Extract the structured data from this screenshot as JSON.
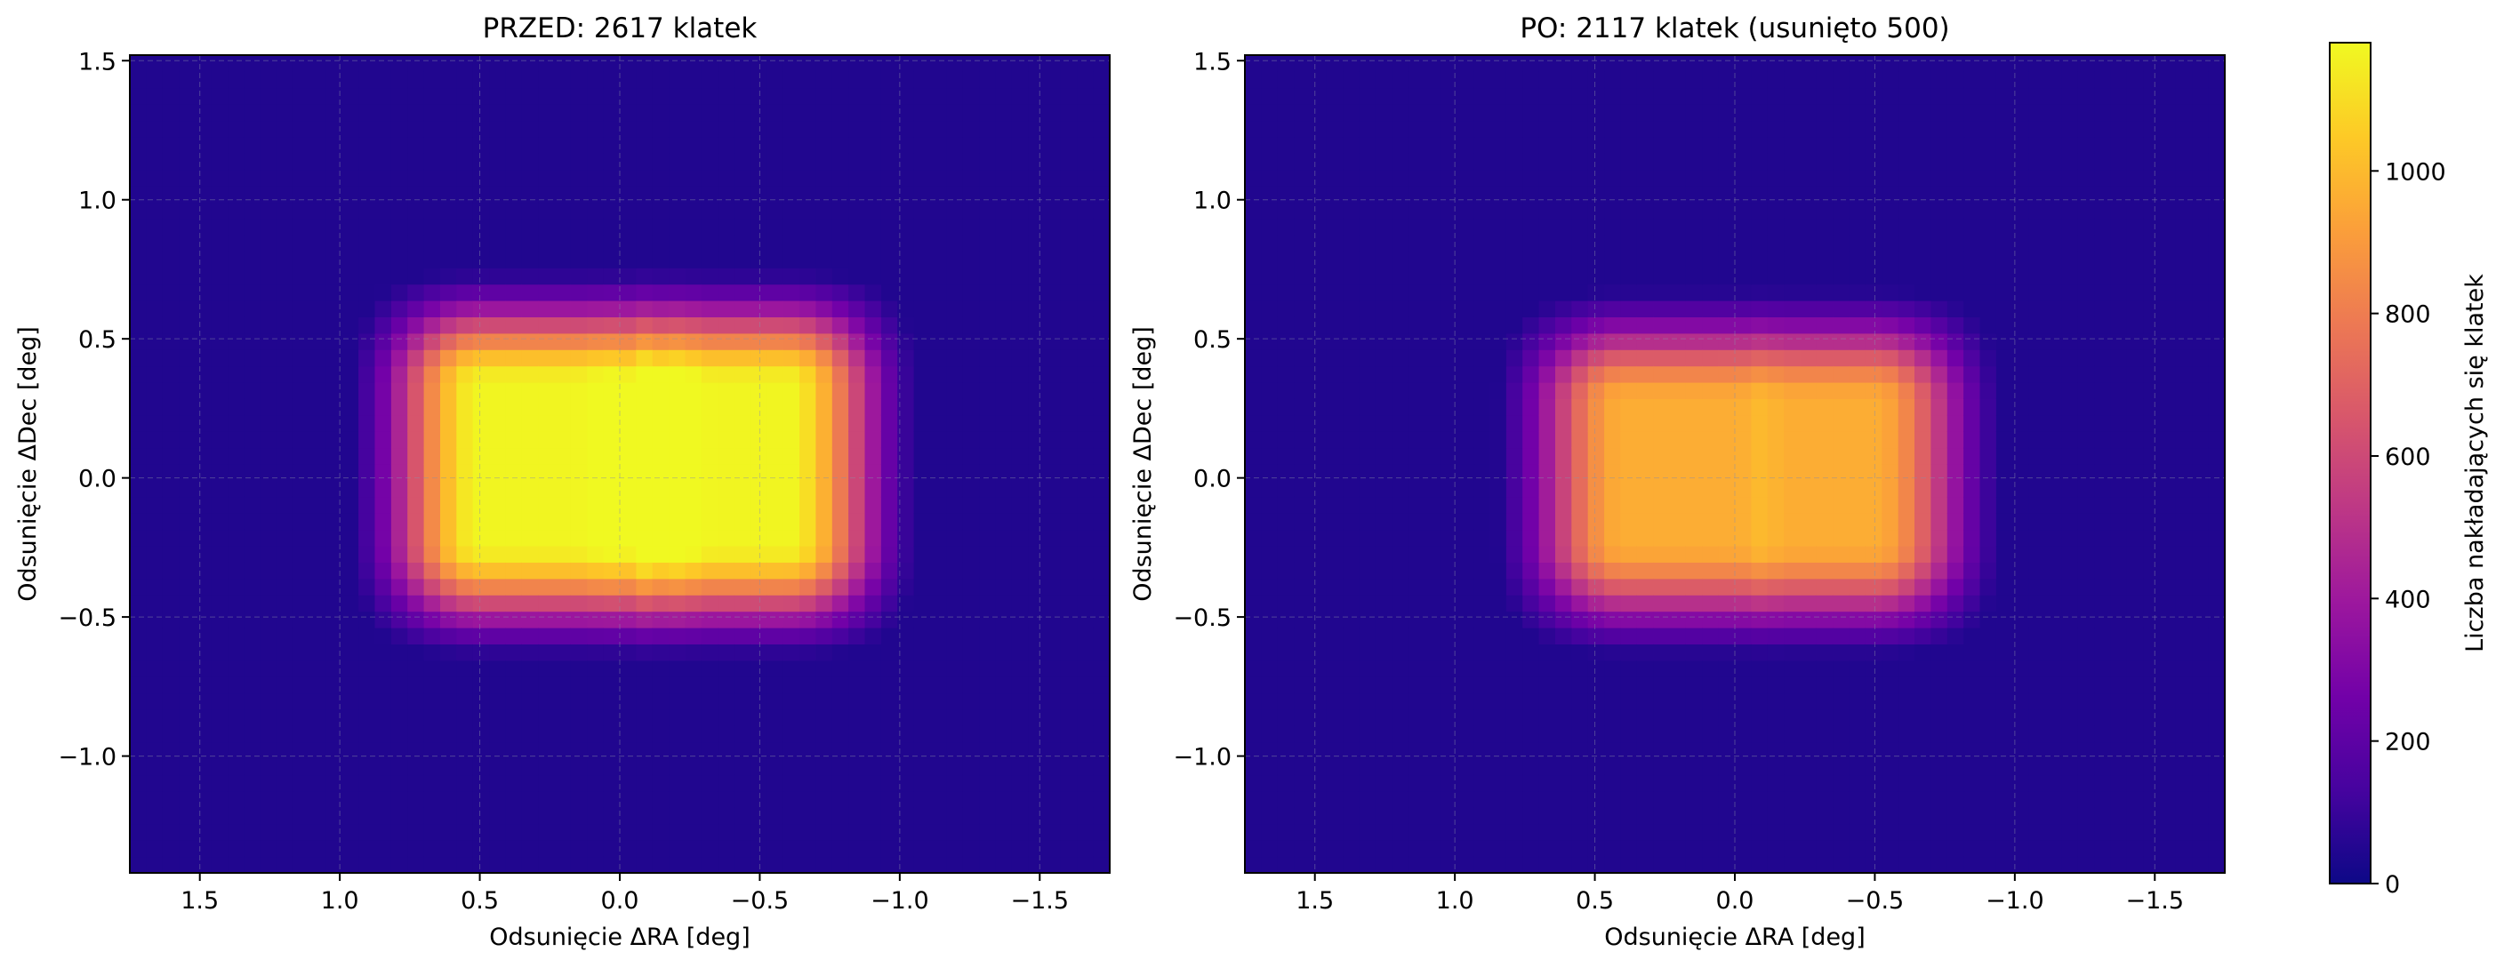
{
  "chart_data": [
    {
      "type": "heatmap",
      "title": "PRZED: 2617 klatek",
      "xlabel": "Odsunięcie ΔRA [deg]",
      "ylabel": "Odsunięcie ΔDec [deg]",
      "xlim": [
        1.75,
        -1.75
      ],
      "ylim": [
        -1.42,
        1.52
      ],
      "x_ticks": [
        1.5,
        1.0,
        0.5,
        0.0,
        -0.5,
        -1.0,
        -1.5
      ],
      "x_tick_labels": [
        "1.5",
        "1.0",
        "0.5",
        "0.0",
        "−0.5",
        "−1.0",
        "−1.5"
      ],
      "y_ticks": [
        1.5,
        1.0,
        0.5,
        0.0,
        -0.5,
        -1.0
      ],
      "y_tick_labels": [
        "1.5",
        "1.0",
        "0.5",
        "0.0",
        "−0.5",
        "−1.0"
      ],
      "grid": true,
      "coverage": {
        "peak": 1170,
        "center": [
          -0.05,
          0.05
        ],
        "plateau_half_width": [
          0.55,
          0.28
        ],
        "fade_width": [
          0.55,
          0.5
        ],
        "column_stripes": [
          {
            "x": -0.1,
            "boost": 90
          },
          {
            "x": -0.22,
            "boost": 70
          },
          {
            "x": 0.05,
            "boost": 40
          }
        ]
      }
    },
    {
      "type": "heatmap",
      "title": "PO: 2117 klatek (usunięto 500)",
      "xlabel": "Odsunięcie ΔRA [deg]",
      "ylabel": "Odsunięcie ΔDec [deg]",
      "xlim": [
        1.75,
        -1.75
      ],
      "ylim": [
        -1.42,
        1.52
      ],
      "x_ticks": [
        1.5,
        1.0,
        0.5,
        0.0,
        -0.5,
        -1.0,
        -1.5
      ],
      "x_tick_labels": [
        "1.5",
        "1.0",
        "0.5",
        "0.0",
        "−0.5",
        "−1.0",
        "−1.5"
      ],
      "y_ticks": [
        1.5,
        1.0,
        0.5,
        0.0,
        -0.5,
        -1.0
      ],
      "y_tick_labels": [
        "1.5",
        "1.0",
        "0.5",
        "0.0",
        "−0.5",
        "−1.0"
      ],
      "grid": true,
      "coverage": {
        "peak": 960,
        "center": [
          -0.05,
          0.02
        ],
        "plateau_half_width": [
          0.45,
          0.25
        ],
        "fade_width": [
          0.55,
          0.5
        ],
        "column_stripes": [
          {
            "x": -0.1,
            "boost": 40
          }
        ]
      }
    }
  ],
  "colorbar": {
    "label": "Liczba nakładających się klatek",
    "colormap": "plasma",
    "vmin": 0,
    "vmax": 1180,
    "ticks": [
      0,
      200,
      400,
      600,
      800,
      1000
    ],
    "tick_labels": [
      "0",
      "200",
      "400",
      "600",
      "800",
      "1000"
    ]
  },
  "colors": {
    "plasma_stops": [
      "#0d0887",
      "#46039f",
      "#7201a8",
      "#9c179e",
      "#bd3786",
      "#d8576b",
      "#ed7953",
      "#fb9f3a",
      "#fdca26",
      "#f0f921"
    ],
    "grid": "#8a8fa8"
  }
}
